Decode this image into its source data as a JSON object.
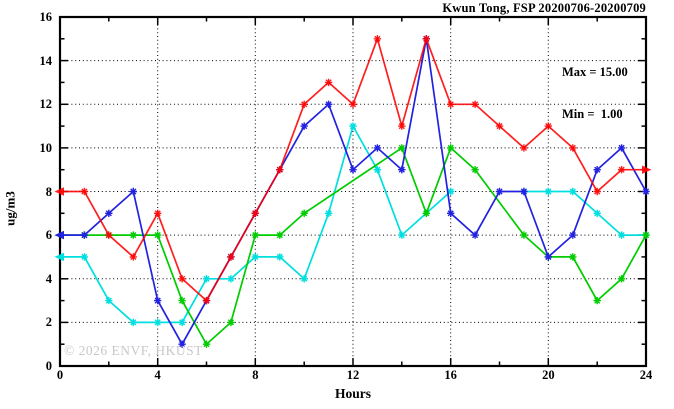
{
  "title": "Kwun Tong, FSP 20200706-20200709",
  "legend": {
    "max_label": "Max = 15.00",
    "min_label": "Min =  1.00"
  },
  "watermark": "© 2026 ENVF, HKUST",
  "chart_data": {
    "type": "line",
    "title": "Kwun Tong, FSP 20200706-20200709",
    "xlabel": "Hours",
    "ylabel": "ug/m3",
    "xlim": [
      0,
      24
    ],
    "ylim": [
      0,
      16
    ],
    "x_major_ticks": [
      0,
      4,
      8,
      12,
      16,
      20,
      24
    ],
    "x_minor_ticks": [
      2,
      6,
      10,
      14,
      18,
      22
    ],
    "y_major_ticks": [
      0,
      2,
      4,
      6,
      8,
      10,
      12,
      14,
      16
    ],
    "y_minor_ticks": [
      1,
      3,
      5,
      7,
      9,
      11,
      13,
      15
    ],
    "x_gridlines": [
      4,
      8,
      12,
      16,
      20
    ],
    "y_gridlines": [
      2,
      4,
      6,
      8,
      10,
      12,
      14
    ],
    "grid": "dotted",
    "legend_position": "top-right",
    "stats": {
      "max": 15.0,
      "min": 1.0
    },
    "marker": "asterisk",
    "x": [
      0,
      1,
      2,
      3,
      4,
      5,
      6,
      7,
      8,
      9,
      10,
      11,
      12,
      13,
      14,
      15,
      16,
      17,
      18,
      19,
      20,
      21,
      22,
      23,
      24
    ],
    "series": [
      {
        "name": "cyan",
        "color": "#00dfdf",
        "connect_gaps": false,
        "arrow_start": true,
        "arrow_end": false,
        "values": [
          5,
          5,
          3,
          2,
          2,
          2,
          4,
          4,
          5,
          5,
          4,
          7,
          11,
          9,
          6,
          7,
          8,
          null,
          null,
          8,
          8,
          8,
          7,
          6,
          6
        ]
      },
      {
        "name": "green",
        "color": "#00cc00",
        "connect_gaps": true,
        "arrow_start": true,
        "arrow_end": false,
        "values": [
          6,
          6,
          6,
          6,
          6,
          3,
          1,
          2,
          6,
          6,
          7,
          null,
          null,
          null,
          10,
          7,
          10,
          9,
          null,
          6,
          5,
          5,
          3,
          4,
          6
        ]
      },
      {
        "name": "blue",
        "color": "#2222e0",
        "connect_gaps": true,
        "arrow_start": true,
        "arrow_end": false,
        "values": [
          6,
          6,
          7,
          8,
          3,
          1,
          3,
          5,
          7,
          9,
          11,
          12,
          9,
          10,
          9,
          15,
          7,
          6,
          8,
          8,
          5,
          6,
          9,
          10,
          8
        ]
      },
      {
        "name": "red",
        "color": "#ff0000",
        "connect_gaps": true,
        "arrow_start": true,
        "arrow_end": true,
        "opacity": 0.88,
        "values": [
          8,
          8,
          6,
          5,
          7,
          4,
          3,
          5,
          7,
          9,
          12,
          13,
          12,
          15,
          11,
          15,
          12,
          12,
          11,
          10,
          11,
          10,
          8,
          9,
          9
        ]
      }
    ]
  }
}
